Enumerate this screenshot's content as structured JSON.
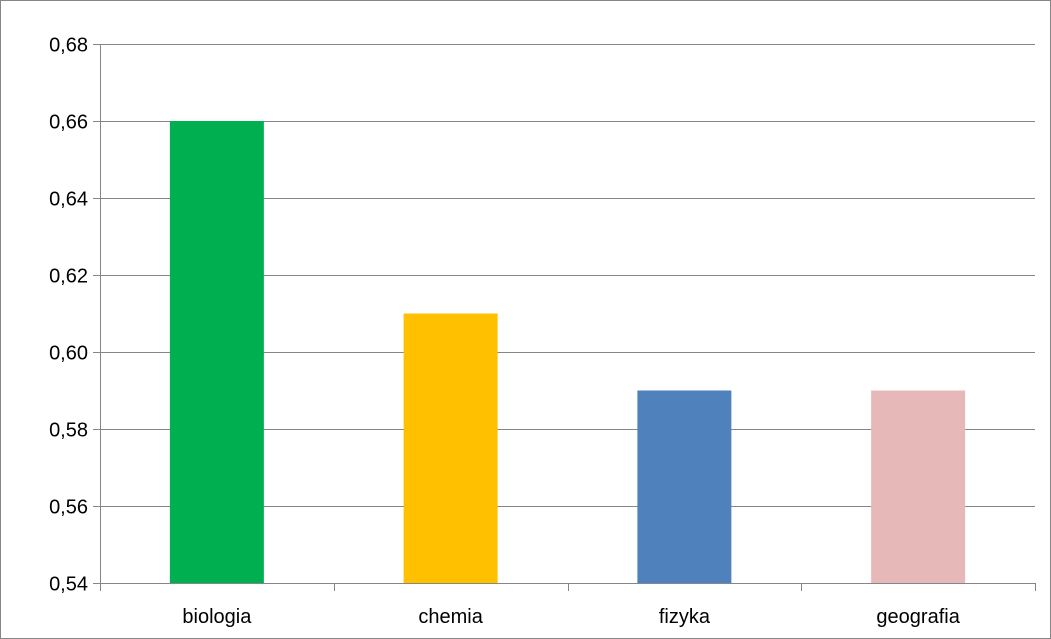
{
  "chart_data": {
    "type": "bar",
    "categories": [
      "biologia",
      "chemia",
      "fizyka",
      "geografia"
    ],
    "values": [
      0.66,
      0.61,
      0.59,
      0.59
    ],
    "bar_colors": [
      "#00B050",
      "#FFC000",
      "#4F81BD",
      "#E6B9B8"
    ],
    "title": "",
    "xlabel": "",
    "ylabel": "",
    "ylim": [
      0.54,
      0.68
    ],
    "y_ticks": [
      0.54,
      0.56,
      0.58,
      0.6,
      0.62,
      0.64,
      0.66,
      0.68
    ],
    "y_tick_labels": [
      "0,54",
      "0,56",
      "0,58",
      "0,60",
      "0,62",
      "0,64",
      "0,66",
      "0,68"
    ],
    "grid": true,
    "legend": "none",
    "gridline_color": "#868686",
    "axis_color": "#868686"
  }
}
